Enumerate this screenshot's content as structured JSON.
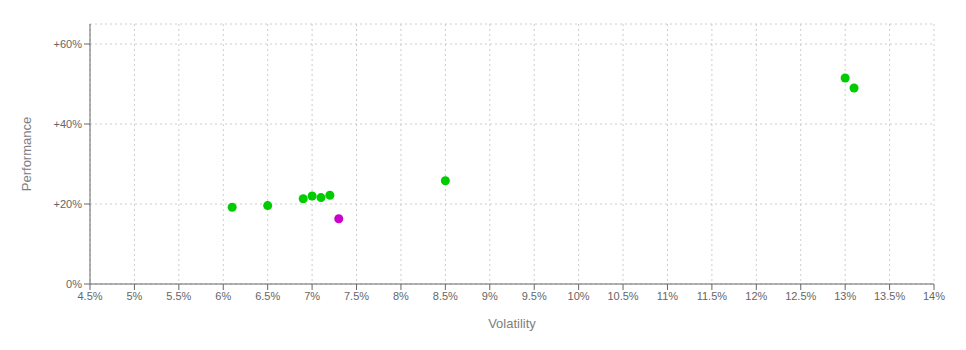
{
  "chart_data": {
    "type": "scatter",
    "xlabel": "Volatility",
    "ylabel": "Performance",
    "xlim": [
      0.045,
      0.14
    ],
    "ylim": [
      0.0,
      0.65
    ],
    "xticks": [
      {
        "value": 0.045,
        "label": "4.5%"
      },
      {
        "value": 0.05,
        "label": "5%"
      },
      {
        "value": 0.055,
        "label": "5.5%"
      },
      {
        "value": 0.06,
        "label": "6%"
      },
      {
        "value": 0.065,
        "label": "6.5%"
      },
      {
        "value": 0.07,
        "label": "7%"
      },
      {
        "value": 0.075,
        "label": "7.5%"
      },
      {
        "value": 0.08,
        "label": "8%"
      },
      {
        "value": 0.085,
        "label": "8.5%"
      },
      {
        "value": 0.09,
        "label": "9%"
      },
      {
        "value": 0.095,
        "label": "9.5%"
      },
      {
        "value": 0.1,
        "label": "10%"
      },
      {
        "value": 0.105,
        "label": "10.5%"
      },
      {
        "value": 0.11,
        "label": "11%"
      },
      {
        "value": 0.115,
        "label": "11.5%"
      },
      {
        "value": 0.12,
        "label": "12%"
      },
      {
        "value": 0.125,
        "label": "12.5%"
      },
      {
        "value": 0.13,
        "label": "13%"
      },
      {
        "value": 0.135,
        "label": "13.5%"
      },
      {
        "value": 0.14,
        "label": "14%"
      }
    ],
    "yticks": [
      {
        "value": 0.0,
        "label": "0%"
      },
      {
        "value": 0.2,
        "label": "+20%"
      },
      {
        "value": 0.4,
        "label": "+40%"
      },
      {
        "value": 0.6,
        "label": "+60%"
      }
    ],
    "grid": true,
    "series": [
      {
        "color": "#00cc00",
        "x": [
          0.061,
          0.065,
          0.069,
          0.07,
          0.071,
          0.072,
          0.085,
          0.13,
          0.131
        ],
        "values": [
          0.192,
          0.196,
          0.213,
          0.22,
          0.216,
          0.222,
          0.258,
          0.515,
          0.49
        ]
      },
      {
        "color": "#cc00cc",
        "x": [
          0.073
        ],
        "values": [
          0.163
        ]
      }
    ]
  }
}
